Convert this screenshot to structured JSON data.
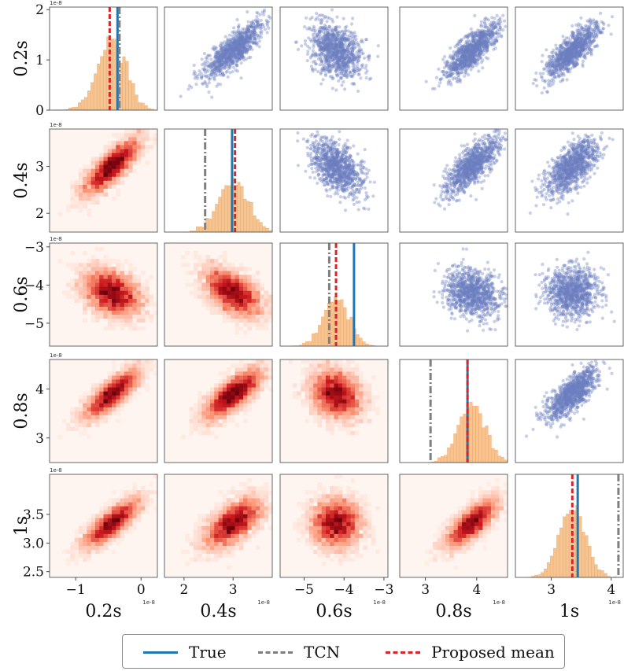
{
  "chart_data": {
    "type": "pairplot",
    "variables": [
      "0.2s",
      "0.4s",
      "0.6s",
      "0.8s",
      "1s"
    ],
    "scale_label": "1e-8",
    "ranges": [
      [
        -1.4,
        0.25
      ],
      [
        1.6,
        3.8
      ],
      [
        -5.6,
        -2.9
      ],
      [
        2.5,
        4.6
      ],
      [
        2.4,
        4.2
      ]
    ],
    "diag_ylim": [
      0,
      2.05
    ],
    "y_ticks": {
      "0": [
        {
          "v": 0,
          "label": "0"
        },
        {
          "v": 1,
          "label": "1"
        },
        {
          "v": 2,
          "label": "2"
        }
      ],
      "1": [
        {
          "v": 2,
          "label": "2"
        },
        {
          "v": 3,
          "label": "3"
        }
      ],
      "2": [
        {
          "v": -5,
          "label": "−5"
        },
        {
          "v": -4,
          "label": "−4"
        },
        {
          "v": -3,
          "label": "−3"
        }
      ],
      "3": [
        {
          "v": 3,
          "label": "3"
        },
        {
          "v": 4,
          "label": "4"
        }
      ],
      "4": [
        {
          "v": 2.5,
          "label": "2.5"
        },
        {
          "v": 3.0,
          "label": "3.0"
        },
        {
          "v": 3.5,
          "label": "3.5"
        }
      ]
    },
    "x_ticks": {
      "0": [
        {
          "v": -1,
          "label": "−1"
        },
        {
          "v": 0,
          "label": "0"
        }
      ],
      "1": [
        {
          "v": 2,
          "label": "2"
        },
        {
          "v": 3,
          "label": "3"
        }
      ],
      "2": [
        {
          "v": -5,
          "label": "−5"
        },
        {
          "v": -4,
          "label": "−4"
        },
        {
          "v": -3,
          "label": "−3"
        }
      ],
      "3": [
        {
          "v": 3,
          "label": "3"
        },
        {
          "v": 4,
          "label": "4"
        }
      ],
      "4": [
        {
          "v": 3,
          "label": "3"
        },
        {
          "v": 4,
          "label": "4"
        }
      ]
    },
    "posterior_mean": [
      -0.45,
      3.0,
      -4.2,
      3.9,
      3.35
    ],
    "posterior_std": [
      0.22,
      0.3,
      0.32,
      0.26,
      0.22
    ],
    "true_values": [
      -0.36,
      2.98,
      -3.75,
      3.82,
      3.44
    ],
    "tcn_values": [
      -0.33,
      2.43,
      -4.37,
      3.1,
      4.12
    ],
    "proposed_mean_values": [
      -0.48,
      3.04,
      -4.2,
      3.82,
      3.35
    ],
    "correlations": [
      [
        1.0,
        0.8,
        -0.3,
        0.8,
        0.8
      ],
      [
        0.8,
        1.0,
        -0.5,
        0.75,
        0.6
      ],
      [
        -0.3,
        -0.5,
        1.0,
        -0.2,
        0.0
      ],
      [
        0.8,
        0.75,
        -0.2,
        1.0,
        0.75
      ],
      [
        0.8,
        0.6,
        0.0,
        0.75,
        1.0
      ]
    ],
    "legend": [
      "True",
      "TCN",
      "Proposed mean"
    ],
    "colors": {
      "true": "#1f77b4",
      "tcn": "#7f7f7f",
      "proposed_mean": "#d62728",
      "hist_fill": "#f5c490",
      "hist_edge": "#f0a868",
      "scatter": "#6b7fbf",
      "heat_low": "#fff5f0",
      "heat_high": "#67000d"
    }
  }
}
